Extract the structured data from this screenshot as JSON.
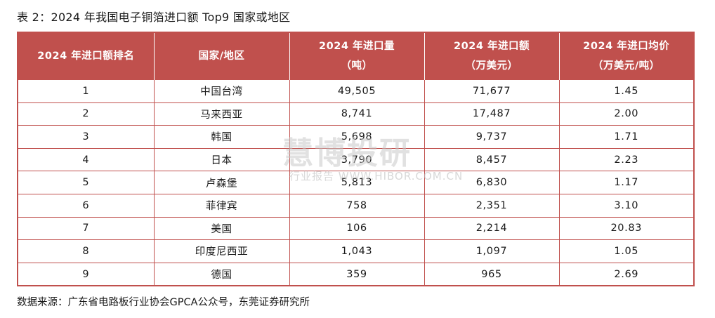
{
  "caption": "表 2：2024 年我国电子铜箔进口额 Top9 国家或地区",
  "table": {
    "headers": [
      {
        "line1": "2024 年进口额排名",
        "line2": ""
      },
      {
        "line1": "国家/地区",
        "line2": ""
      },
      {
        "line1": "2024 年进口量",
        "line2": "（吨）"
      },
      {
        "line1": "2024 年进口额",
        "line2": "（万美元）"
      },
      {
        "line1": "2024 年进口均价",
        "line2": "（万美元/吨）"
      }
    ],
    "rows": [
      [
        "1",
        "中国台湾",
        "49,505",
        "71,677",
        "1.45"
      ],
      [
        "2",
        "马来西亚",
        "8,741",
        "17,487",
        "2.00"
      ],
      [
        "3",
        "韩国",
        "5,698",
        "9,737",
        "1.71"
      ],
      [
        "4",
        "日本",
        "3,790",
        "8,457",
        "2.23"
      ],
      [
        "5",
        "卢森堡",
        "5,813",
        "6,830",
        "1.17"
      ],
      [
        "6",
        "菲律宾",
        "758",
        "2,351",
        "3.10"
      ],
      [
        "7",
        "美国",
        "106",
        "2,214",
        "20.83"
      ],
      [
        "8",
        "印度尼西亚",
        "1,043",
        "1,097",
        "1.05"
      ],
      [
        "9",
        "德国",
        "359",
        "965",
        "2.69"
      ]
    ]
  },
  "source": "数据来源：广东省电路板行业协会GPCA公众号，东莞证券研究所",
  "watermark": {
    "title": "慧博投研",
    "subtitle": "行业报告  WWW.HIBOR.COM.CN"
  },
  "colors": {
    "header_bg": "#c0504d",
    "border": "#c0504d",
    "header_text": "#ffffff"
  }
}
